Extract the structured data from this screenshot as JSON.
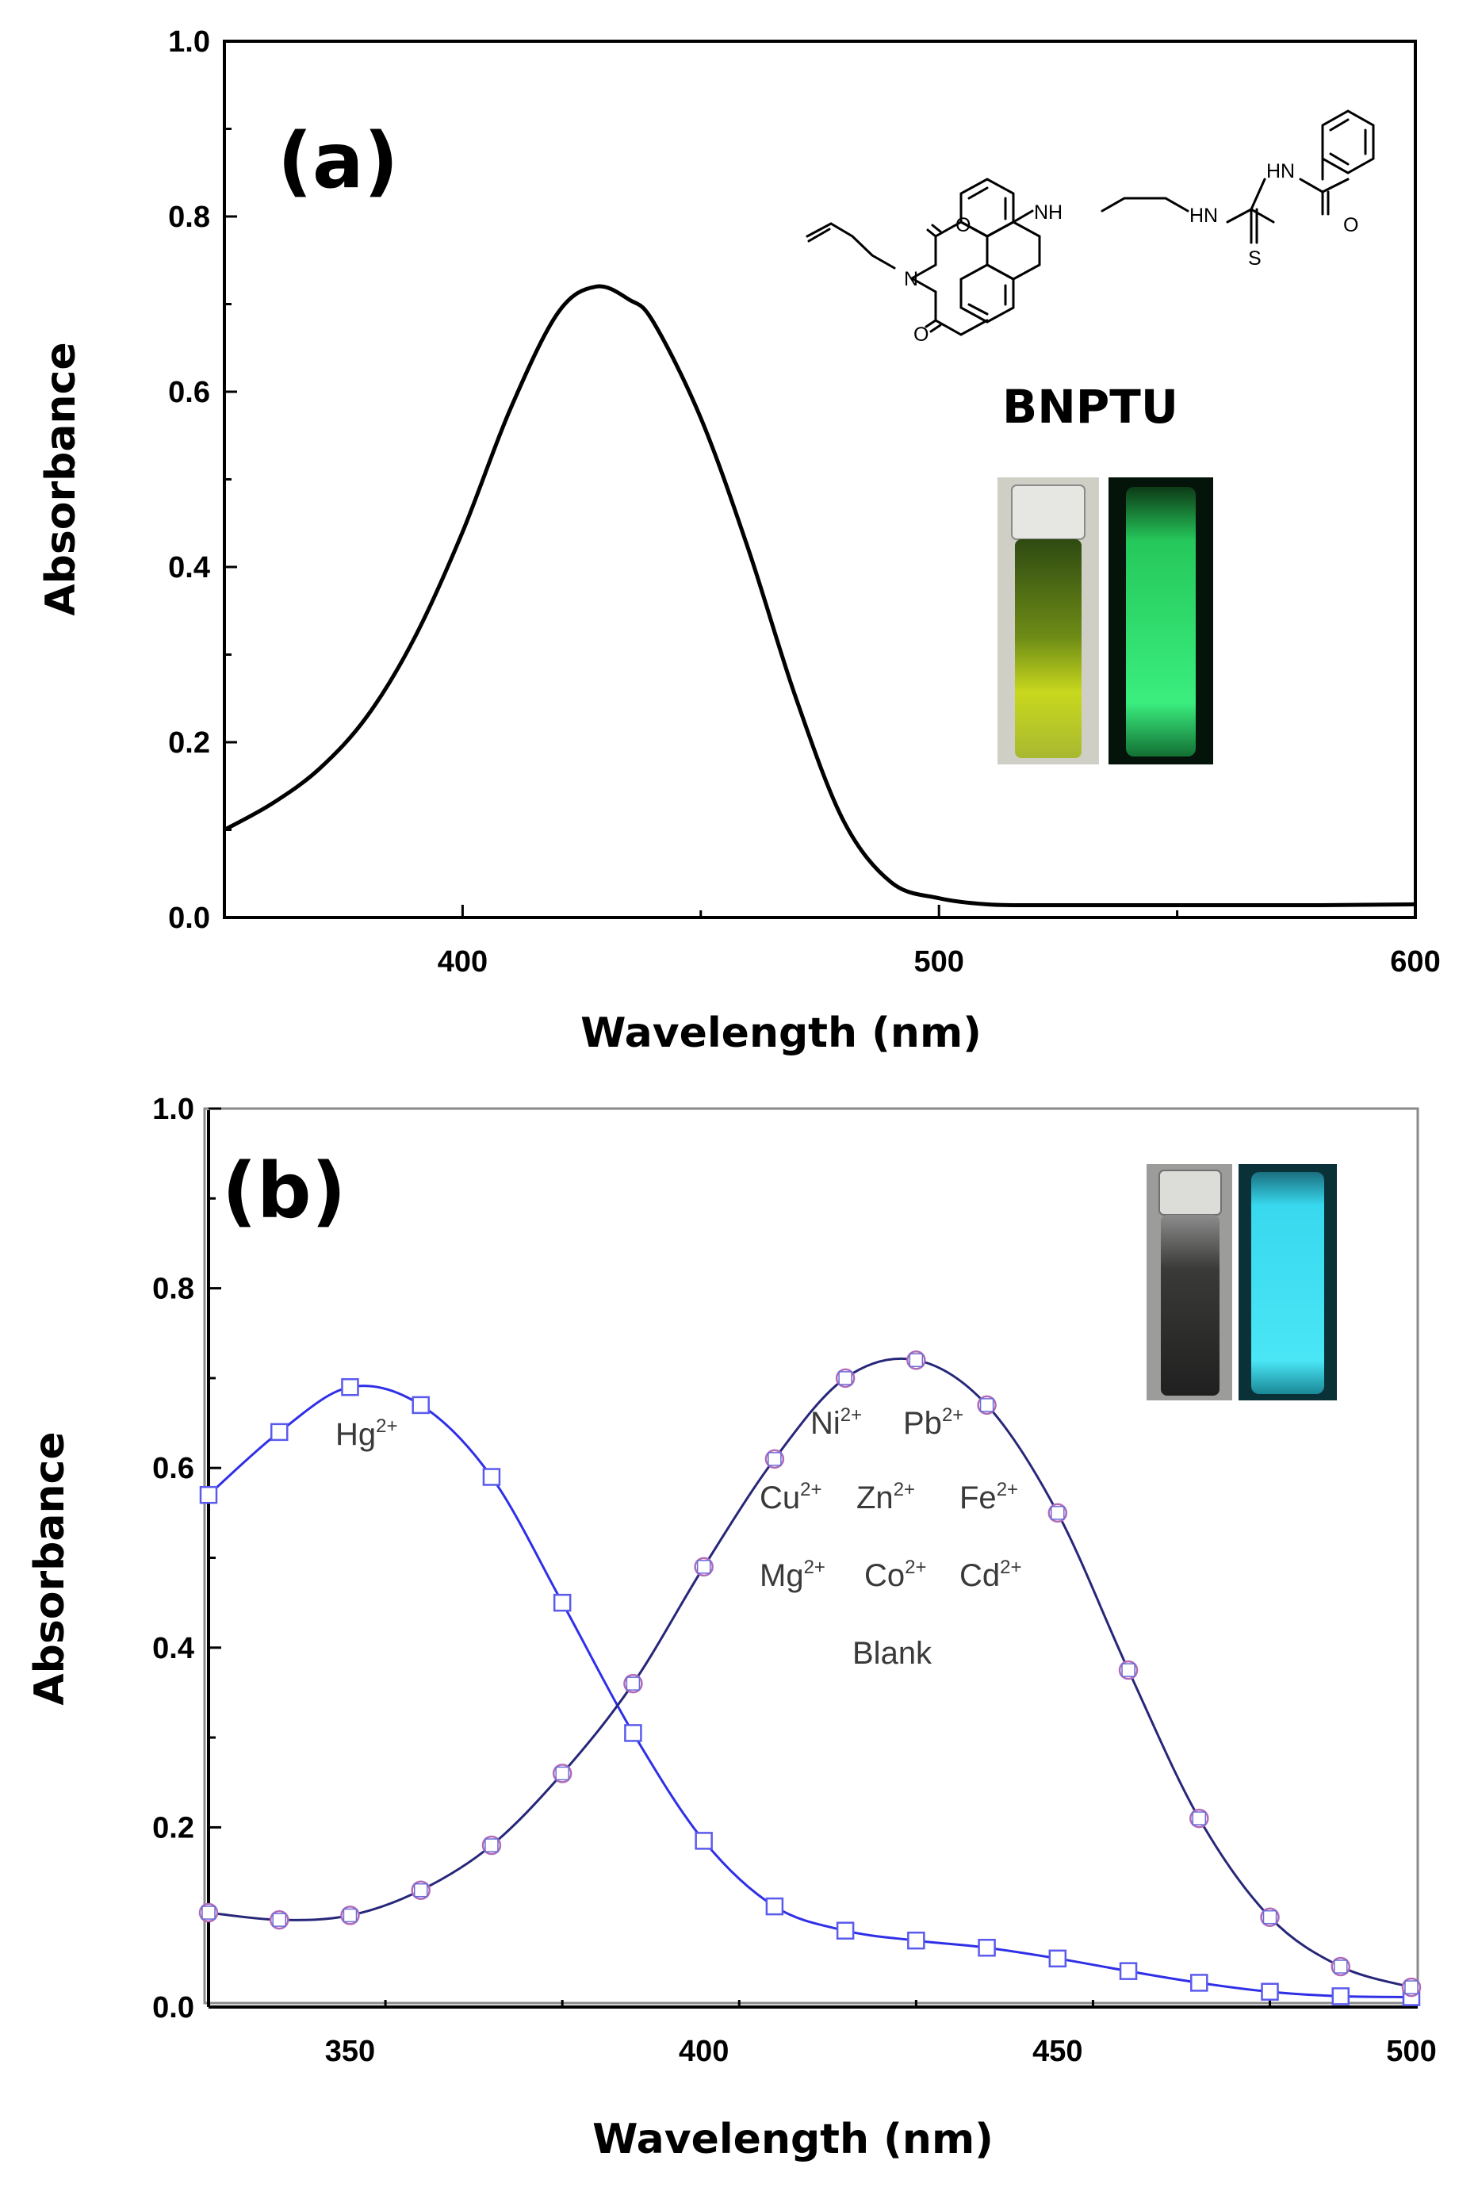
{
  "chart_data": [
    {
      "panel": "(a)",
      "type": "line",
      "xlabel": "Wavelength (nm)",
      "ylabel": "Absorbance",
      "xlim": [
        350,
        600
      ],
      "ylim": [
        0.0,
        1.0
      ],
      "x_ticks": [
        "400",
        "500",
        "600"
      ],
      "y_ticks": [
        "0.0",
        "0.2",
        "0.4",
        "0.6",
        "0.8",
        "1.0"
      ],
      "grid": false,
      "compound_label": "BNPTU",
      "structure_atoms": [
        "O",
        "N",
        "O",
        "NH",
        "HN",
        "HN",
        "O",
        "S"
      ],
      "inset": "two vials of BNPTU solution: yellow under daylight, green fluorescence under UV",
      "series": [
        {
          "name": "BNPTU",
          "color": "#000000",
          "x": [
            350,
            360,
            370,
            380,
            390,
            400,
            410,
            420,
            428,
            435,
            440,
            450,
            460,
            470,
            480,
            490,
            500,
            510,
            520,
            550,
            580,
            600
          ],
          "y": [
            0.1,
            0.13,
            0.17,
            0.23,
            0.32,
            0.44,
            0.58,
            0.69,
            0.72,
            0.705,
            0.68,
            0.57,
            0.42,
            0.25,
            0.11,
            0.04,
            0.022,
            0.015,
            0.014,
            0.014,
            0.014,
            0.015
          ]
        }
      ]
    },
    {
      "panel": "(b)",
      "type": "line",
      "xlabel": "Wavelength (nm)",
      "ylabel": "Absorbance",
      "xlim": [
        330,
        500
      ],
      "ylim": [
        0.0,
        1.0
      ],
      "x_ticks": [
        "350",
        "400",
        "450",
        "500"
      ],
      "y_ticks": [
        "0.0",
        "0.2",
        "0.4",
        "0.6",
        "0.8",
        "1.0"
      ],
      "grid": false,
      "inset": "two vials with Hg2+: clear under daylight, cyan-blue fluorescence under UV",
      "annotations": {
        "hg": {
          "label": "Hg",
          "sup": "2+"
        },
        "row1": [
          {
            "label": "Ni",
            "sup": "2+"
          },
          {
            "label": "Pb",
            "sup": "2+"
          }
        ],
        "row2": [
          {
            "label": "Cu",
            "sup": "2+"
          },
          {
            "label": "Zn",
            "sup": "2+"
          },
          {
            "label": "Fe",
            "sup": "2+"
          }
        ],
        "row3": [
          {
            "label": "Mg",
            "sup": "2+"
          },
          {
            "label": "Co",
            "sup": "2+"
          },
          {
            "label": "Cd",
            "sup": "2+"
          }
        ],
        "blank": "Blank"
      },
      "series": [
        {
          "name": "Hg2+",
          "color": "#2f2fe8",
          "marker": "square",
          "x": [
            330,
            340,
            350,
            360,
            370,
            380,
            390,
            400,
            410,
            420,
            430,
            440,
            450,
            460,
            470,
            480,
            490,
            500
          ],
          "y": [
            0.57,
            0.64,
            0.69,
            0.67,
            0.59,
            0.45,
            0.305,
            0.185,
            0.112,
            0.085,
            0.074,
            0.066,
            0.054,
            0.04,
            0.027,
            0.017,
            0.012,
            0.011
          ]
        },
        {
          "name": "Ni2+ Pb2+ Cu2+ Zn2+ Fe2+ Mg2+ Co2+ Cd2+ Blank",
          "color": "#27277a",
          "marker": "circle",
          "x": [
            330,
            340,
            350,
            360,
            370,
            380,
            390,
            400,
            410,
            420,
            430,
            440,
            450,
            460,
            470,
            480,
            490,
            500
          ],
          "y": [
            0.105,
            0.097,
            0.102,
            0.13,
            0.18,
            0.26,
            0.36,
            0.49,
            0.61,
            0.7,
            0.72,
            0.67,
            0.55,
            0.375,
            0.21,
            0.1,
            0.045,
            0.022
          ]
        }
      ]
    }
  ]
}
